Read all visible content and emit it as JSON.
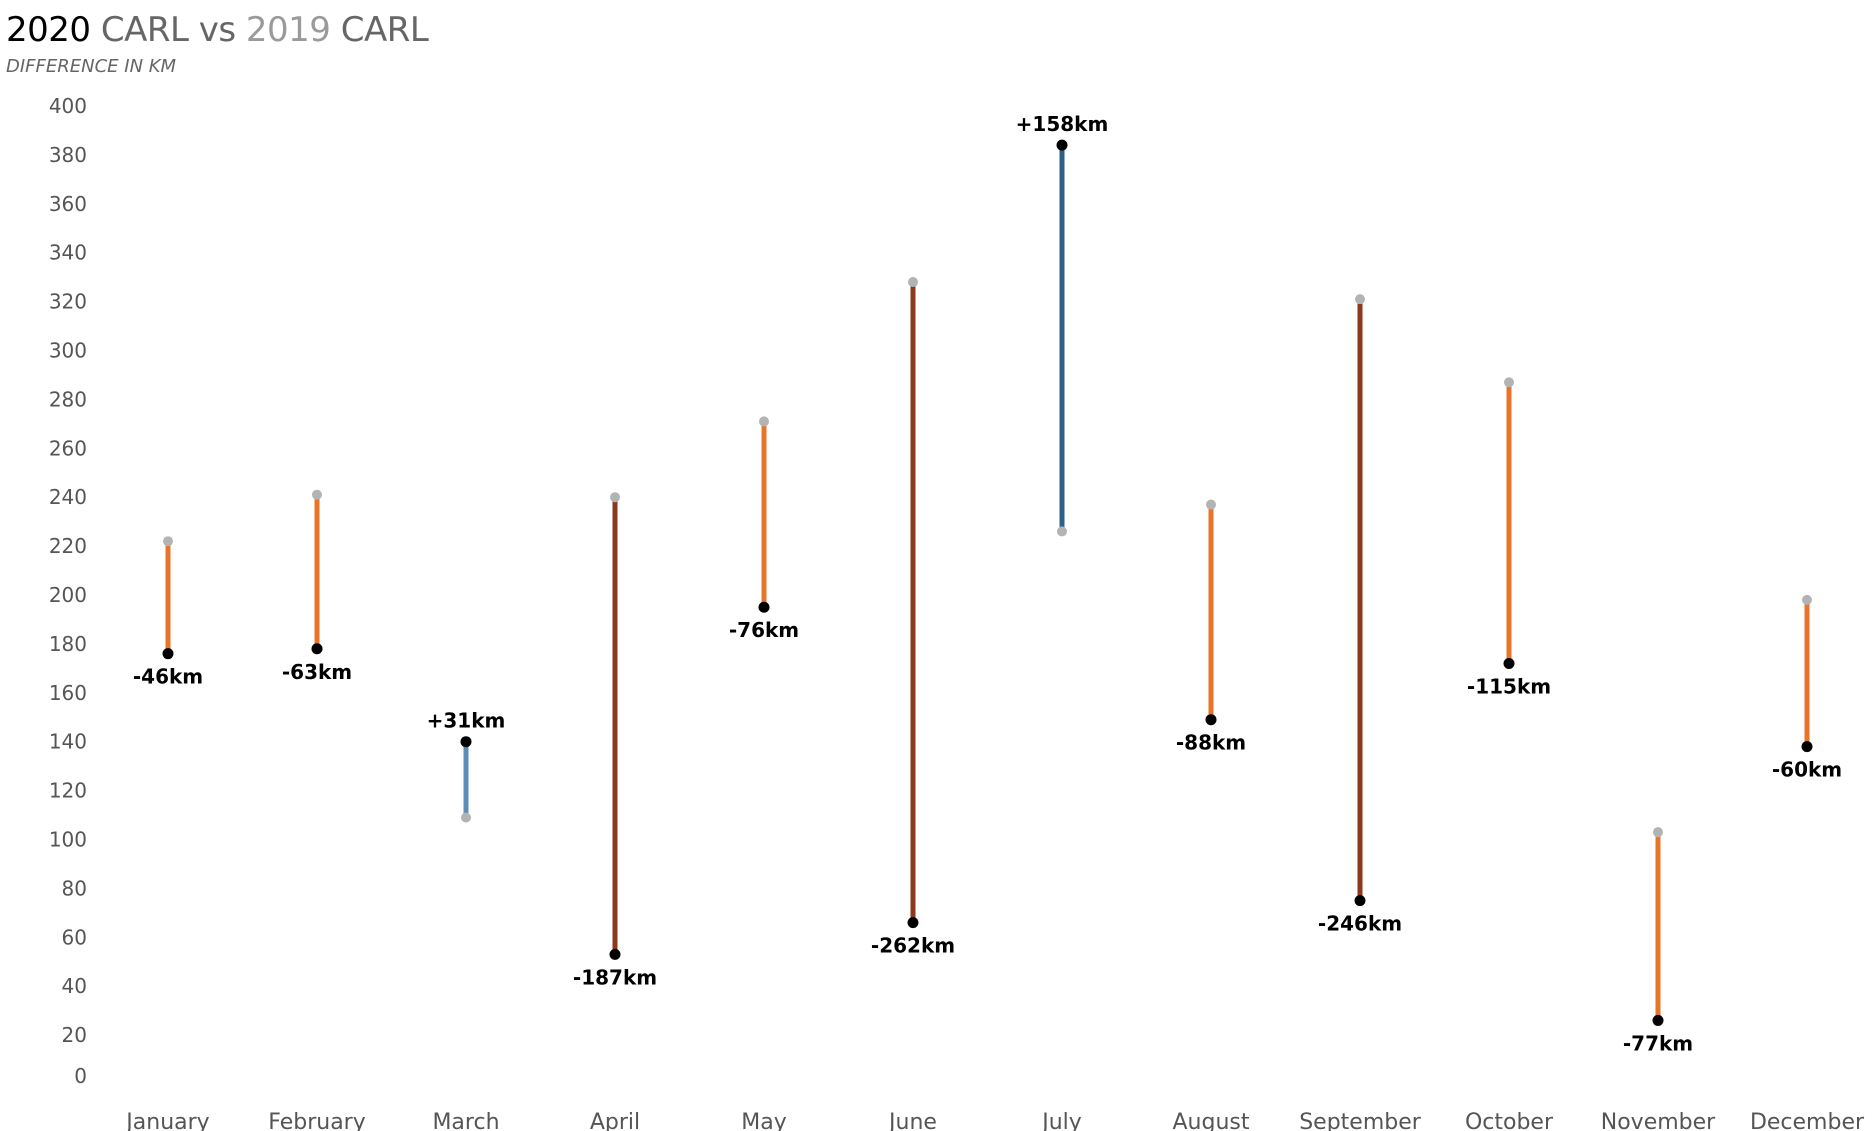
{
  "title": {
    "year_a": "2020",
    "name_a": "CARL",
    "vs": "vs",
    "year_b": "2019",
    "name_b": "CARL"
  },
  "subtitle": "DIFFERENCE IN KM",
  "colors": {
    "increase_small": "#5b8db8",
    "increase_large": "#2e5f86",
    "decrease_small": "#e8742a",
    "decrease_large": "#8b3a1f",
    "point_2020": "#000000",
    "point_2019": "#b3b3b3"
  },
  "chart_data": {
    "type": "dumbbell",
    "categories": [
      "January",
      "February",
      "March",
      "April",
      "May",
      "June",
      "July",
      "August",
      "September",
      "October",
      "November",
      "December"
    ],
    "series": [
      {
        "name": "2020",
        "values": [
          176,
          178,
          140,
          53,
          195,
          66,
          384,
          149,
          75,
          172,
          26,
          138
        ]
      },
      {
        "name": "2019",
        "values": [
          222,
          241,
          109,
          240,
          271,
          328,
          226,
          237,
          321,
          287,
          103,
          198
        ]
      }
    ],
    "labels": [
      "-46km",
      "-63km",
      "+31km",
      "-187km",
      "-76km",
      "-262km",
      "+158km",
      "-88km",
      "-246km",
      "-115km",
      "-77km",
      "-60km"
    ],
    "yticks": [
      0,
      20,
      40,
      60,
      80,
      100,
      120,
      140,
      160,
      180,
      200,
      220,
      240,
      260,
      280,
      300,
      320,
      340,
      360,
      380,
      400
    ],
    "ylim": [
      0,
      400
    ],
    "grid": false,
    "xlabel": "",
    "ylabel": ""
  }
}
